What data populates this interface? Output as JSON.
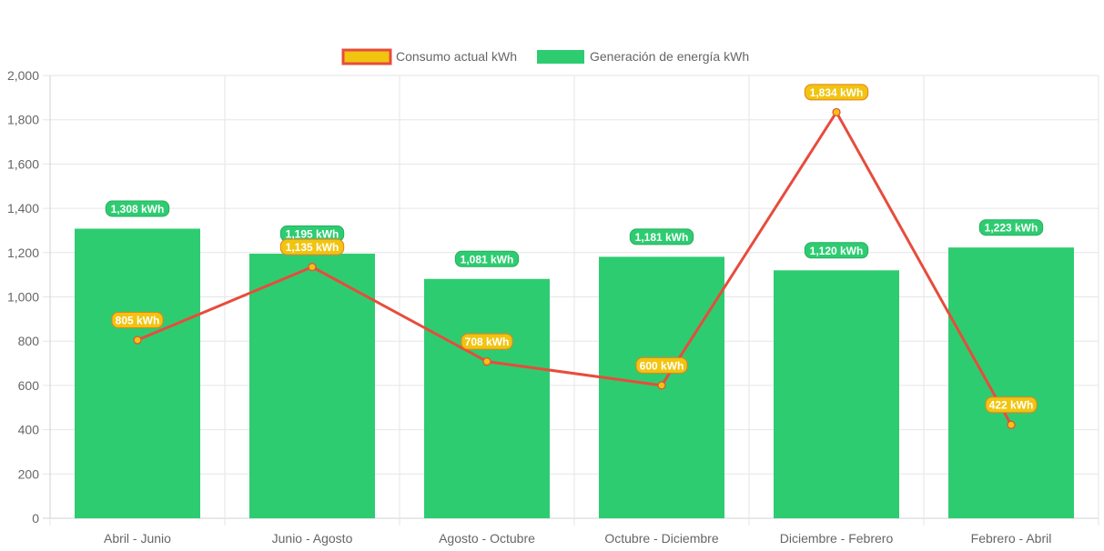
{
  "chart_data": {
    "type": "bar",
    "categories": [
      "Abril - Junio",
      "Junio - Agosto",
      "Agosto - Octubre",
      "Octubre - Diciembre",
      "Diciembre - Febrero",
      "Febrero - Abril"
    ],
    "ylim": [
      0,
      2000
    ],
    "yticks": [
      "0",
      "200",
      "400",
      "600",
      "800",
      "1,000",
      "1,200",
      "1,400",
      "1,600",
      "1,800",
      "2,000"
    ],
    "ytick_values": [
      0,
      200,
      400,
      600,
      800,
      1000,
      1200,
      1400,
      1600,
      1800,
      2000
    ],
    "grid": true,
    "legend_position": "top",
    "series": [
      {
        "name": "Consumo actual kWh",
        "kind": "line",
        "color": "#e74c3c",
        "point_color": "#f1c40f",
        "values": [
          805,
          1135,
          708,
          600,
          1834,
          422
        ],
        "labels": [
          "805 kWh",
          "1,135 kWh",
          "708 kWh",
          "600 kWh",
          "1,834 kWh",
          "422 kWh"
        ]
      },
      {
        "name": "Generación de energía kWh",
        "kind": "bar",
        "color": "#2ecc71",
        "values": [
          1308,
          1195,
          1081,
          1181,
          1120,
          1223
        ],
        "labels": [
          "1,308 kWh",
          "1,195 kWh",
          "1,081 kWh",
          "1,181 kWh",
          "1,120 kWh",
          "1,223 kWh"
        ]
      }
    ]
  }
}
